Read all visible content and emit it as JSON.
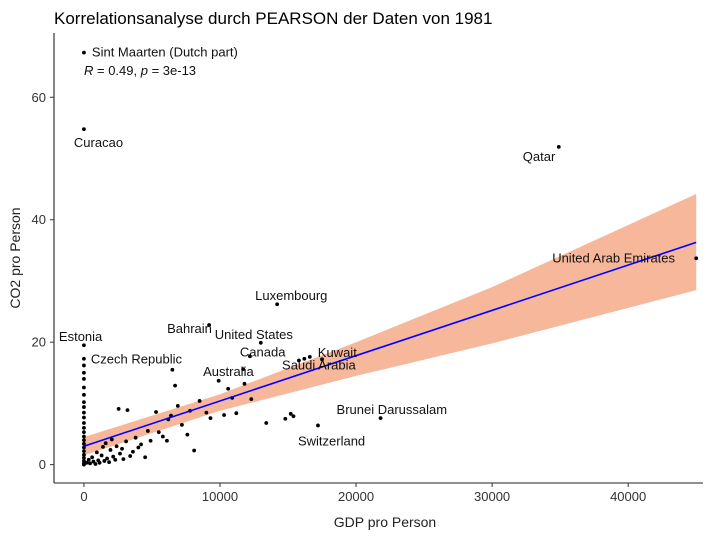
{
  "chart_data": {
    "type": "scatter",
    "title": "Korrelationsanalyse durch PEARSON der Daten von 1981",
    "xlabel": "GDP pro Person",
    "ylabel": "CO2 pro Person",
    "xlim": [
      -2200,
      45500
    ],
    "ylim": [
      -3,
      70.5
    ],
    "xticks": [
      0,
      10000,
      20000,
      30000,
      40000
    ],
    "yticks": [
      0,
      20,
      40,
      60
    ],
    "grid": false,
    "annotation": "R = 0.49, p = 3e-13",
    "colors": {
      "points": "#000000",
      "line": "#0000ff",
      "ribbon": "#f4a582"
    },
    "regression": {
      "x0": 0,
      "y0": 3.0,
      "x1": 45000,
      "y1": 36.3
    },
    "ribbon": [
      {
        "x": 0,
        "low": 1.5,
        "high": 4.5
      },
      {
        "x": 10000,
        "low": 8.8,
        "high": 11.5
      },
      {
        "x": 20000,
        "low": 14.5,
        "high": 20.0
      },
      {
        "x": 30000,
        "low": 19.8,
        "high": 29.0
      },
      {
        "x": 45000,
        "low": 28.5,
        "high": 44.2
      }
    ],
    "labeled_points": [
      {
        "label": "Sint Maarten (Dutch part)",
        "x": 0,
        "y": 67.3
      },
      {
        "label": "Curacao",
        "x": 0,
        "y": 54.8
      },
      {
        "label": "Qatar",
        "x": 34900,
        "y": 51.9
      },
      {
        "label": "United Arab Emirates",
        "x": 45000,
        "y": 33.7
      },
      {
        "label": "Luxembourg",
        "x": 14200,
        "y": 26.2
      },
      {
        "label": "United States",
        "x": 13000,
        "y": 19.9
      },
      {
        "label": "Estonia",
        "x": 0,
        "y": 19.5
      },
      {
        "label": "Bahrain",
        "x": 9200,
        "y": 22.8
      },
      {
        "label": "Canada",
        "x": 12200,
        "y": 17.7
      },
      {
        "label": "Czech Republic",
        "x": 0,
        "y": 17.3
      },
      {
        "label": "Kuwait",
        "x": 16600,
        "y": 17.6
      },
      {
        "label": "Saudi Arabia",
        "x": 17500,
        "y": 17.2
      },
      {
        "label": "Australia",
        "x": 11700,
        "y": 15.6
      },
      {
        "label": "Brunei Darussalam",
        "x": 21800,
        "y": 7.6
      },
      {
        "label": "Switzerland",
        "x": 17200,
        "y": 6.4
      }
    ],
    "points": [
      [
        0,
        16.2
      ],
      [
        0,
        15.0
      ],
      [
        0,
        14.0
      ],
      [
        0,
        12.6
      ],
      [
        0,
        11.4
      ],
      [
        0,
        10.2
      ],
      [
        0,
        9.4
      ],
      [
        0,
        8.5
      ],
      [
        0,
        7.7
      ],
      [
        0,
        6.8
      ],
      [
        0,
        6.0
      ],
      [
        0,
        5.3
      ],
      [
        0,
        4.6
      ],
      [
        0,
        4.0
      ],
      [
        0,
        3.4
      ],
      [
        0,
        2.8
      ],
      [
        0,
        2.2
      ],
      [
        0,
        1.6
      ],
      [
        0,
        1.1
      ],
      [
        0,
        0.6
      ],
      [
        0,
        0.2
      ],
      [
        0,
        0.0
      ],
      [
        200,
        0.3
      ],
      [
        350,
        0.8
      ],
      [
        450,
        0.2
      ],
      [
        600,
        1.2
      ],
      [
        700,
        0.5
      ],
      [
        850,
        0.1
      ],
      [
        950,
        2.0
      ],
      [
        1050,
        0.7
      ],
      [
        1150,
        0.3
      ],
      [
        1300,
        1.5
      ],
      [
        1400,
        2.9
      ],
      [
        1500,
        0.6
      ],
      [
        1600,
        3.5
      ],
      [
        1700,
        1.0
      ],
      [
        1850,
        0.4
      ],
      [
        1950,
        2.4
      ],
      [
        2050,
        4.1
      ],
      [
        2150,
        1.3
      ],
      [
        2300,
        0.8
      ],
      [
        2400,
        3.0
      ],
      [
        2550,
        9.1
      ],
      [
        2650,
        1.8
      ],
      [
        2800,
        2.6
      ],
      [
        2900,
        0.9
      ],
      [
        3100,
        3.8
      ],
      [
        3200,
        8.9
      ],
      [
        3400,
        1.4
      ],
      [
        3600,
        2.1
      ],
      [
        3800,
        4.4
      ],
      [
        4000,
        2.8
      ],
      [
        4200,
        3.3
      ],
      [
        4500,
        1.2
      ],
      [
        4700,
        5.5
      ],
      [
        4900,
        3.9
      ],
      [
        5300,
        8.6
      ],
      [
        5500,
        5.3
      ],
      [
        5800,
        4.6
      ],
      [
        6100,
        3.9
      ],
      [
        6200,
        7.4
      ],
      [
        6400,
        8.0
      ],
      [
        6500,
        15.5
      ],
      [
        6700,
        12.9
      ],
      [
        6900,
        9.6
      ],
      [
        7200,
        6.5
      ],
      [
        7600,
        4.9
      ],
      [
        7800,
        8.8
      ],
      [
        8100,
        2.3
      ],
      [
        8500,
        10.4
      ],
      [
        9000,
        8.5
      ],
      [
        9300,
        7.6
      ],
      [
        9900,
        13.7
      ],
      [
        10300,
        8.1
      ],
      [
        10600,
        12.4
      ],
      [
        10900,
        10.9
      ],
      [
        11200,
        8.4
      ],
      [
        11800,
        13.2
      ],
      [
        12300,
        10.7
      ],
      [
        13400,
        6.8
      ],
      [
        14800,
        7.5
      ],
      [
        15200,
        8.3
      ],
      [
        15400,
        7.9
      ],
      [
        15800,
        17.0
      ],
      [
        16200,
        17.3
      ]
    ]
  }
}
